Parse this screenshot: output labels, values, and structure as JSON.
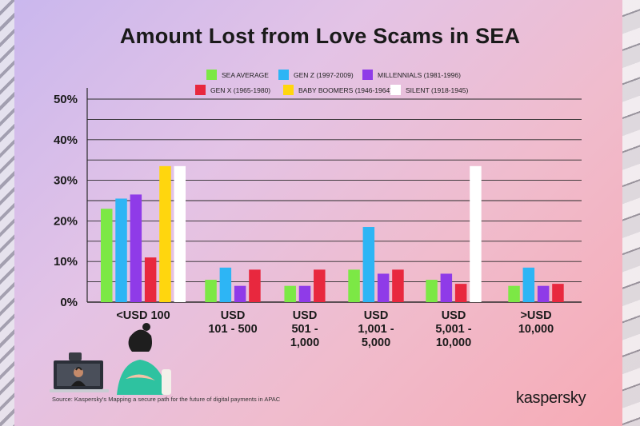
{
  "chart_data": {
    "type": "bar",
    "title": "Amount Lost from Love Scams in SEA",
    "categories": [
      [
        "<USD 100"
      ],
      [
        "USD",
        "101 - 500"
      ],
      [
        "USD",
        "501 -",
        "1,000"
      ],
      [
        "USD",
        "1,001 -",
        "5,000"
      ],
      [
        "USD",
        "5,001 -",
        "10,000"
      ],
      [
        ">USD",
        "10,000"
      ]
    ],
    "series": [
      {
        "name": "SEA AVERAGE",
        "color": "#7CE845",
        "values": [
          23,
          5.5,
          4,
          8,
          5.5,
          4
        ]
      },
      {
        "name": "GEN Z (1997-2009)",
        "color": "#2DB5F5",
        "values": [
          25.5,
          8.5,
          null,
          18.5,
          null,
          8.5
        ]
      },
      {
        "name": "MILLENNIALS (1981-1996)",
        "color": "#8F3BE8",
        "values": [
          26.5,
          4,
          4,
          7,
          7,
          4
        ]
      },
      {
        "name": "GEN X (1965-1980)",
        "color": "#E8283E",
        "values": [
          11,
          8,
          8,
          8,
          4.5,
          4.5
        ]
      },
      {
        "name": "BABY BOOMERS (1946-1964)",
        "color": "#FFD60E",
        "values": [
          33.5,
          null,
          null,
          null,
          null,
          null
        ]
      },
      {
        "name": "SILENT (1918-1945)",
        "color": "#FFFFFF",
        "values": [
          33.5,
          null,
          null,
          null,
          33.5,
          null
        ]
      }
    ],
    "yticks": [
      "0%",
      "10%",
      "20%",
      "30%",
      "40%",
      "50%"
    ],
    "ylim": [
      0,
      50
    ],
    "grid": true,
    "legend_position": "top"
  },
  "source": "Source: Kaspersky's Mapping a secure path for the future of digital payments in APAC",
  "brand": "kaspersky"
}
